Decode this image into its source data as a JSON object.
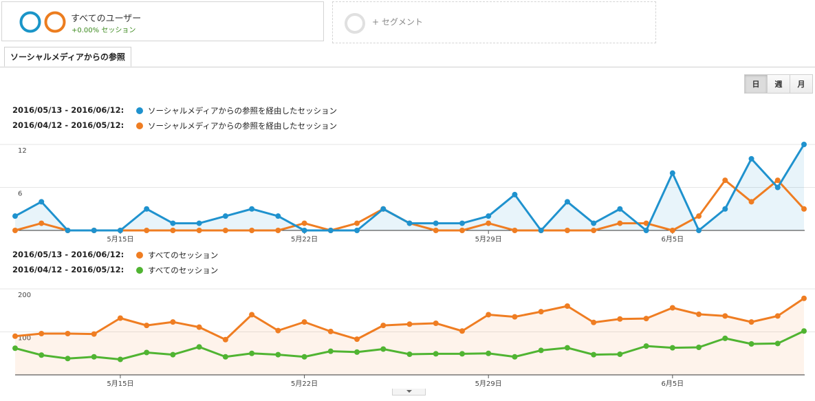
{
  "segments": {
    "active": {
      "title": "すべてのユーザー",
      "subtitle": "+0.00% セッション",
      "colors": [
        "#1a95c8",
        "#ec7d1f"
      ]
    },
    "add": {
      "label": "+ セグメント"
    }
  },
  "tab": {
    "label": "ソーシャルメディアからの参照"
  },
  "period_buttons": [
    {
      "label": "日",
      "active": true
    },
    {
      "label": "週",
      "active": false
    },
    {
      "label": "月",
      "active": false
    }
  ],
  "chart_data": [
    {
      "type": "line",
      "legend": [
        {
          "range": "2016/05/13 - 2016/06/12:",
          "name": "ソーシャルメディアからの参照を経由したセッション",
          "color": "#1f92ce"
        },
        {
          "range": "2016/04/12 - 2016/05/12:",
          "name": "ソーシャルメディアからの参照を経由したセッション",
          "color": "#ef7d22"
        }
      ],
      "y_ticks": [
        "12",
        "6"
      ],
      "x_ticks": [
        "5月15日",
        "5月22日",
        "5月29日",
        "6月5日"
      ],
      "ylim": [
        0,
        12
      ],
      "series": [
        {
          "values": [
            2,
            4,
            0,
            0,
            0,
            3,
            1,
            1,
            2,
            3,
            2,
            0,
            0,
            0,
            3,
            1,
            1,
            1,
            2,
            5,
            0,
            4,
            1,
            3,
            0,
            8,
            0,
            3,
            10,
            6,
            12
          ],
          "color": "#1f92ce",
          "filled": true
        },
        {
          "values": [
            0,
            1,
            0,
            0,
            0,
            0,
            0,
            0,
            0,
            0,
            0,
            1,
            0,
            1,
            3,
            1,
            0,
            0,
            1,
            0,
            0,
            0,
            0,
            1,
            1,
            0,
            2,
            7,
            4,
            7,
            3
          ],
          "color": "#ef7d22",
          "filled": false
        }
      ]
    },
    {
      "type": "line",
      "legend": [
        {
          "range": "2016/05/13 - 2016/06/12:",
          "name": "すべてのセッション",
          "color": "#ef7d22"
        },
        {
          "range": "2016/04/12 - 2016/05/12:",
          "name": "すべてのセッション",
          "color": "#50b432"
        }
      ],
      "y_ticks": [
        "200",
        "100"
      ],
      "x_ticks": [
        "5月15日",
        "5月22日",
        "5月29日",
        "6月5日"
      ],
      "ylim": [
        0,
        200
      ],
      "series": [
        {
          "values": [
            90,
            96,
            96,
            95,
            132,
            115,
            123,
            111,
            82,
            140,
            103,
            123,
            101,
            83,
            115,
            118,
            120,
            102,
            140,
            135,
            147,
            160,
            122,
            130,
            131,
            156,
            141,
            137,
            123,
            137,
            178
          ],
          "color": "#ef7d22",
          "filled": true
        },
        {
          "values": [
            62,
            46,
            38,
            42,
            36,
            52,
            47,
            65,
            42,
            50,
            47,
            42,
            55,
            53,
            60,
            48,
            49,
            49,
            50,
            42,
            57,
            63,
            47,
            48,
            67,
            63,
            64,
            85,
            72,
            73,
            102
          ],
          "color": "#50b432",
          "filled": false
        }
      ]
    }
  ]
}
